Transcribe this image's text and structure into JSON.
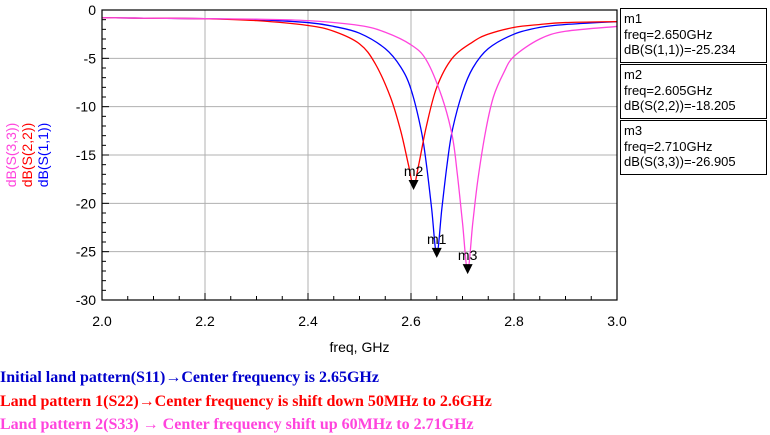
{
  "chart_data": {
    "type": "line",
    "xlabel": "freq, GHz",
    "ylabels": [
      "dB(S(3,3))",
      "dB(S(2,2))",
      "dB(S(1,1))"
    ],
    "xlim": [
      2.0,
      3.0
    ],
    "ylim": [
      -30,
      0
    ],
    "x_ticks": [
      "2.0",
      "2.2",
      "2.4",
      "2.6",
      "2.8",
      "3.0"
    ],
    "y_ticks": [
      "0",
      "-5",
      "-10",
      "-15",
      "-20",
      "-25",
      "-30"
    ],
    "grid": true,
    "series": [
      {
        "name": "dB(S(1,1))",
        "color": "#0000ff",
        "x": [
          2.0,
          2.1,
          2.2,
          2.3,
          2.4,
          2.45,
          2.5,
          2.55,
          2.58,
          2.6,
          2.62,
          2.63,
          2.64,
          2.65,
          2.66,
          2.67,
          2.68,
          2.7,
          2.72,
          2.75,
          2.8,
          2.85,
          2.9,
          3.0
        ],
        "values": [
          -0.8,
          -0.85,
          -0.9,
          -1.0,
          -1.3,
          -1.7,
          -2.4,
          -4.0,
          -5.9,
          -8.2,
          -12.5,
          -16.0,
          -20.5,
          -25.234,
          -20.5,
          -16.0,
          -12.5,
          -8.5,
          -6.0,
          -4.0,
          -2.5,
          -1.8,
          -1.5,
          -1.2
        ]
      },
      {
        "name": "dB(S(2,2))",
        "color": "#ff0000",
        "x": [
          2.0,
          2.1,
          2.2,
          2.3,
          2.4,
          2.45,
          2.5,
          2.53,
          2.56,
          2.58,
          2.595,
          2.605,
          2.615,
          2.63,
          2.65,
          2.68,
          2.72,
          2.75,
          2.8,
          2.85,
          2.9,
          3.0
        ],
        "values": [
          -0.8,
          -0.85,
          -0.9,
          -1.1,
          -1.6,
          -2.2,
          -3.5,
          -5.5,
          -9.0,
          -12.5,
          -16.0,
          -18.205,
          -16.0,
          -12.0,
          -8.0,
          -5.0,
          -3.3,
          -2.5,
          -1.8,
          -1.5,
          -1.3,
          -1.2
        ]
      },
      {
        "name": "dB(S(3,3))",
        "color": "#ff44dd",
        "x": [
          2.0,
          2.1,
          2.2,
          2.3,
          2.4,
          2.5,
          2.55,
          2.6,
          2.63,
          2.66,
          2.68,
          2.69,
          2.7,
          2.71,
          2.72,
          2.73,
          2.745,
          2.76,
          2.78,
          2.8,
          2.85,
          2.9,
          3.0
        ],
        "values": [
          -0.8,
          -0.85,
          -0.9,
          -0.95,
          -1.1,
          -1.6,
          -2.3,
          -3.6,
          -5.2,
          -9.0,
          -13.0,
          -17.0,
          -22.0,
          -26.905,
          -22.0,
          -17.5,
          -12.5,
          -9.0,
          -6.5,
          -4.8,
          -3.0,
          -2.2,
          -1.7
        ]
      }
    ],
    "markers": [
      {
        "label": "m1",
        "x": 2.65,
        "y": -25.234,
        "text": [
          "m1",
          "freq=2.650GHz",
          "dB(S(1,1))=-25.234"
        ]
      },
      {
        "label": "m2",
        "x": 2.605,
        "y": -18.205,
        "text": [
          "m2",
          "freq=2.605GHz",
          "dB(S(2,2))=-18.205"
        ]
      },
      {
        "label": "m3",
        "x": 2.71,
        "y": -26.905,
        "text": [
          "m3",
          "freq=2.710GHz",
          "dB(S(3,3))=-26.905"
        ]
      }
    ]
  },
  "captions": [
    {
      "text": "Initial land pattern(S11)→Center frequency is 2.65GHz",
      "color": "#0000cc"
    },
    {
      "text": "Land pattern 1(S22)→Center frequency is shift down 50MHz to 2.6GHz",
      "color": "#ff0000"
    },
    {
      "text": "Land pattern 2(S33) → Center frequency shift up 60MHz to 2.71GHz",
      "color": "#ff44dd"
    }
  ]
}
